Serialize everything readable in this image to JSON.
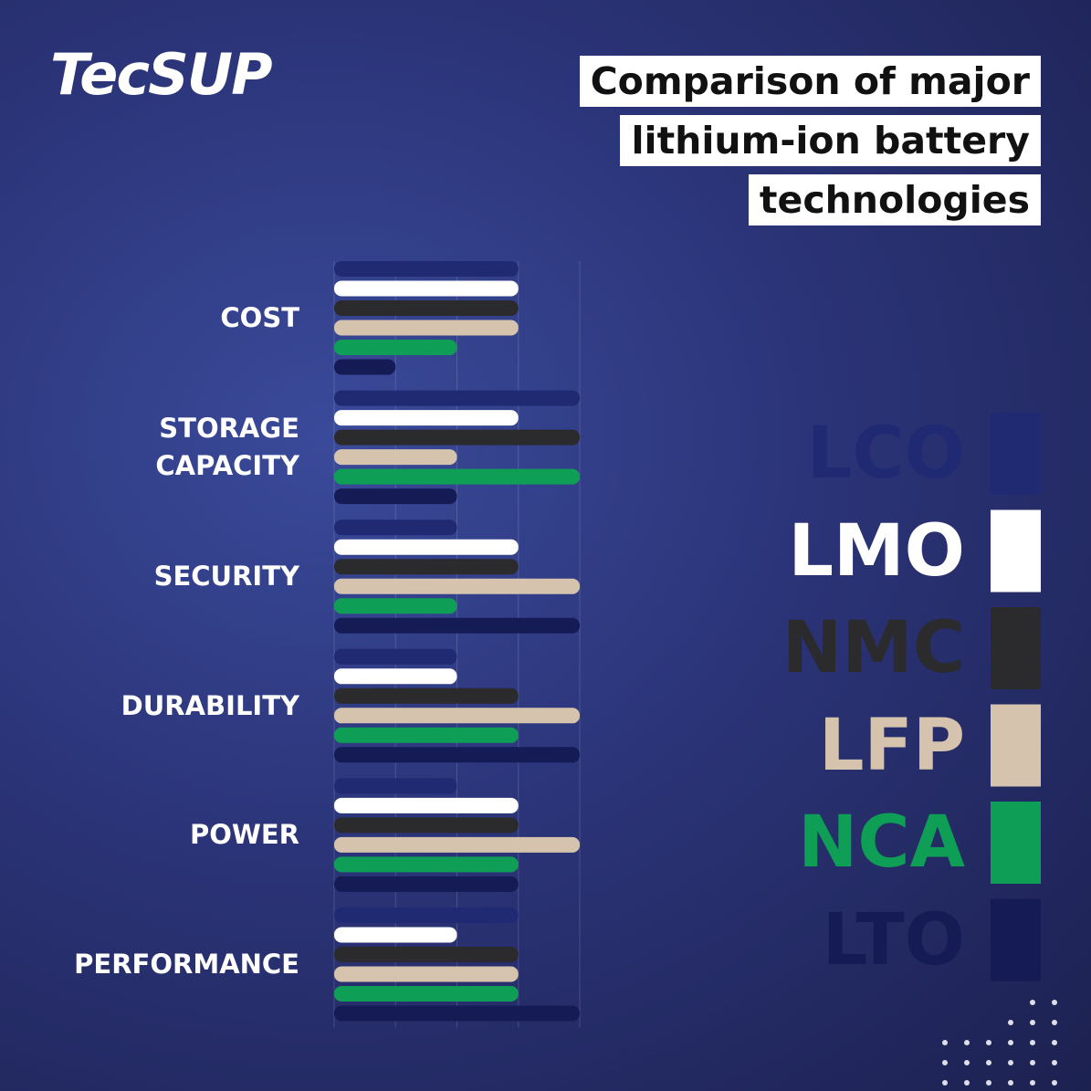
{
  "logo": "TecSUP",
  "chart_data": {
    "type": "bar",
    "orientation": "horizontal",
    "title": "Comparison of major lithium-ion battery technologies",
    "categories": [
      "COST",
      "STORAGE CAPACITY",
      "SECURITY",
      "DURABILITY",
      "POWER",
      "PERFORMANCE"
    ],
    "series": [
      {
        "name": "LCO",
        "color": "#1f2a72",
        "values": [
          3,
          4,
          2,
          2,
          2,
          3
        ]
      },
      {
        "name": "LMO",
        "color": "#ffffff",
        "values": [
          3,
          3,
          3,
          2,
          3,
          2
        ]
      },
      {
        "name": "NMC",
        "color": "#2b2b2d",
        "values": [
          3,
          4,
          3,
          3,
          3,
          3
        ]
      },
      {
        "name": "LFP",
        "color": "#d5c3ae",
        "values": [
          3,
          2,
          4,
          4,
          4,
          3
        ]
      },
      {
        "name": "NCA",
        "color": "#0f9e55",
        "values": [
          2,
          4,
          2,
          3,
          3,
          3
        ]
      },
      {
        "name": "LTO",
        "color": "#141b55",
        "values": [
          1,
          2,
          4,
          4,
          3,
          4
        ]
      }
    ],
    "xlim": [
      0,
      4
    ],
    "xticks": [
      0,
      1,
      2,
      3,
      4
    ],
    "grid": true,
    "legend": "right"
  }
}
